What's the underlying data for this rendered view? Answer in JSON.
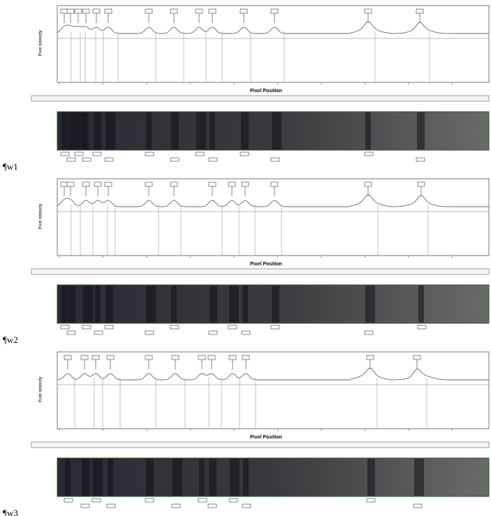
{
  "panels": [
    {
      "label": "¶w1",
      "x_axis_label": "Pixel Position",
      "y_axis_label": "Pixel Intensity"
    },
    {
      "label": "¶w2",
      "x_axis_label": "Pixel Position",
      "y_axis_label": "Pixel Intensity"
    },
    {
      "label": "¶w3",
      "x_axis_label": "Pixel Position",
      "y_axis_label": "Pixel Intensity"
    }
  ]
}
